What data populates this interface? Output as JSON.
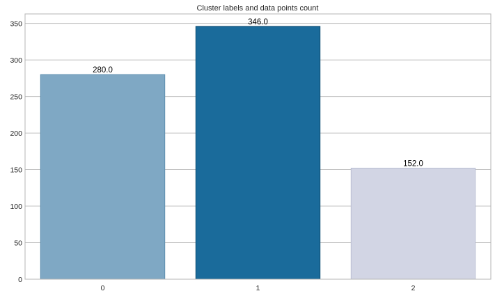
{
  "chart_data": {
    "type": "bar",
    "title": "Cluster labels and data points count",
    "xlabel": "",
    "ylabel": "",
    "categories": [
      "0",
      "1",
      "2"
    ],
    "values": [
      280,
      346,
      152
    ],
    "data_labels": [
      "280.0",
      "346.0",
      "152.0"
    ],
    "ylim": [
      0,
      363
    ],
    "yticks": [
      0,
      50,
      100,
      150,
      200,
      250,
      300,
      350
    ],
    "grid": "horizontal",
    "colors": {
      "bars": [
        "#7fa8c4",
        "#1a6b9b",
        "#d2d5e4"
      ],
      "bar_edges": [
        "#5e8fb0",
        "#0e4d72",
        "#b9bdd2"
      ],
      "grid": "#c0c0c0",
      "axes": "#b5b5b5"
    }
  }
}
